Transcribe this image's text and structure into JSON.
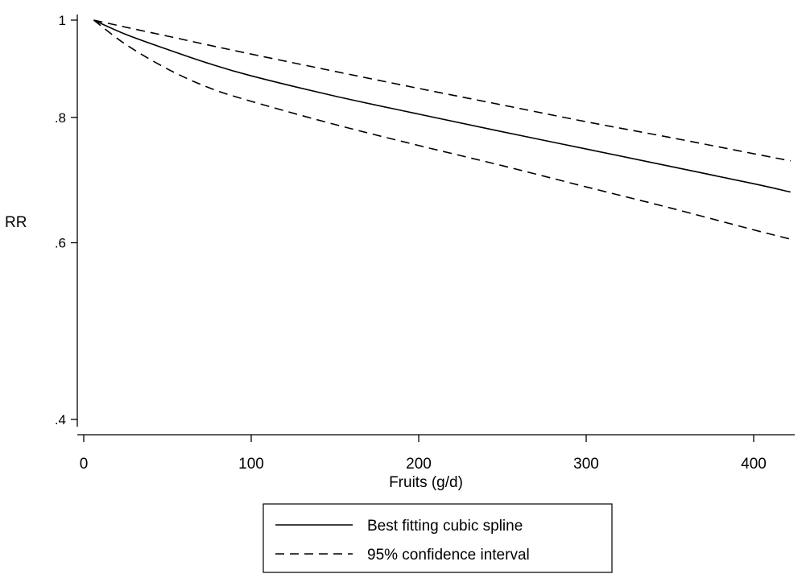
{
  "chart_data": {
    "type": "line",
    "xlabel": "Fruits (g/d)",
    "ylabel": "RR",
    "y_scale": "log",
    "xlim": [
      -5,
      425
    ],
    "ylim": [
      0.39,
      1.02
    ],
    "x_ticks": [
      0,
      100,
      200,
      300,
      400
    ],
    "x_tick_labels": [
      "0",
      "100",
      "200",
      "300",
      "400"
    ],
    "y_ticks": [
      0.4,
      0.6,
      0.8,
      1
    ],
    "y_tick_labels": [
      ".4",
      ".6",
      ".8",
      "1"
    ],
    "grid": false,
    "legend_position": "bottom",
    "x": [
      6,
      25,
      50,
      75,
      100,
      150,
      200,
      250,
      300,
      350,
      400,
      422
    ],
    "series": [
      {
        "name": "Best fitting cubic spline",
        "style": "solid",
        "legend": true,
        "values": [
          1.0,
          0.968,
          0.935,
          0.905,
          0.88,
          0.84,
          0.806,
          0.774,
          0.744,
          0.715,
          0.687,
          0.674
        ]
      },
      {
        "name": "95% confidence interval",
        "style": "dashed",
        "legend": true,
        "values": [
          1.0,
          0.984,
          0.964,
          0.944,
          0.925,
          0.889,
          0.855,
          0.823,
          0.792,
          0.764,
          0.736,
          0.724
        ]
      },
      {
        "name": "95% confidence interval",
        "style": "dashed",
        "legend": false,
        "values": [
          1.0,
          0.946,
          0.894,
          0.856,
          0.83,
          0.787,
          0.75,
          0.716,
          0.682,
          0.65,
          0.618,
          0.605
        ]
      }
    ]
  }
}
